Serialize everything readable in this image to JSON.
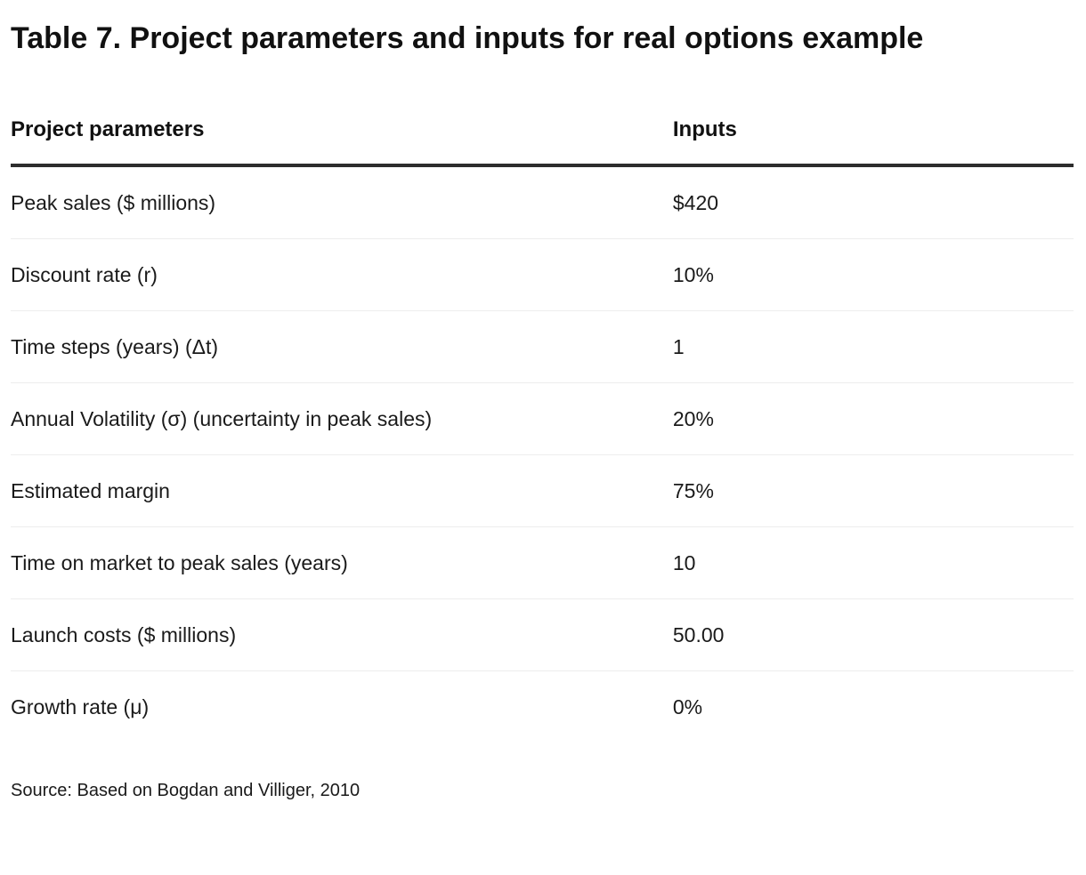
{
  "page": {
    "title": "Table 7. Project parameters and inputs for real options example",
    "source_note": "Source: Based on Bogdan and Villiger, 2010"
  },
  "table": {
    "columns": [
      "Project parameters",
      "Inputs"
    ],
    "rows": [
      {
        "param": "Peak sales ($ millions)",
        "value": "$420"
      },
      {
        "param": "Discount rate (r)",
        "value": "10%"
      },
      {
        "param": "Time steps (years) (Δt)",
        "value": "1"
      },
      {
        "param": "Annual Volatility (σ) (uncertainty in peak sales)",
        "value": "20%"
      },
      {
        "param": "Estimated margin",
        "value": "75%"
      },
      {
        "param": "Time on market to peak sales (years)",
        "value": "10"
      },
      {
        "param": "Launch costs ($ millions)",
        "value": "50.00"
      },
      {
        "param": "Growth rate (μ)",
        "value": "0%"
      }
    ]
  },
  "colors": {
    "background": "#ffffff",
    "text": "#1a1a1a",
    "title_text": "#111111",
    "header_rule": "#2d2d2d",
    "row_divider": "#ededed"
  }
}
